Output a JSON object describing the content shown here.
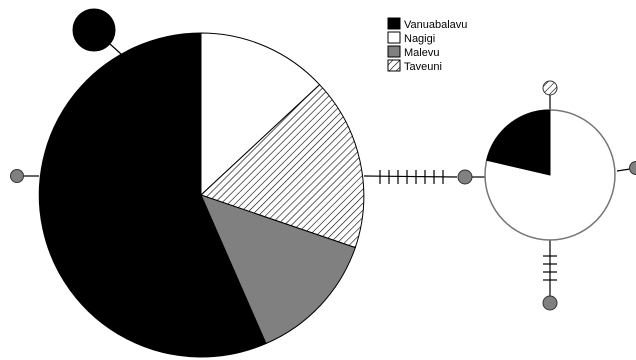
{
  "legend": {
    "items": [
      {
        "label": "Vanuabalavu",
        "fill": "black"
      },
      {
        "label": "Nagigi",
        "fill": "white"
      },
      {
        "label": "Malevu",
        "fill": "gray"
      },
      {
        "label": "Taveuni",
        "fill": "hatch"
      }
    ]
  },
  "colors": {
    "vanuabalavu": "#000000",
    "nagigi": "#ffffff",
    "malevu": "#808080",
    "taveuni_hatch": "#000000",
    "outline": "#000000",
    "small_ring": "#555555",
    "line": "#000000"
  },
  "haplotypes": {
    "large": {
      "composition": {
        "Vanuabalavu": 0.56,
        "Nagigi": 0.14,
        "Malevu": 0.14,
        "Taveuni": 0.16
      }
    },
    "medium": {
      "composition": {
        "Vanuabalavu": 0.22,
        "Nagigi": 0.78
      }
    },
    "singletons": [
      {
        "id": "s-top-left",
        "group": "Vanuabalavu",
        "mutations": 0
      },
      {
        "id": "s-left",
        "group": "Malevu",
        "mutations": 0
      },
      {
        "id": "s-intermediate",
        "group": "Malevu",
        "mutations": 8
      },
      {
        "id": "s-top-right",
        "group": "Taveuni",
        "mutations": 0
      },
      {
        "id": "s-right",
        "group": "Malevu",
        "mutations": 0
      },
      {
        "id": "s-bottom",
        "group": "Malevu",
        "mutations": 4
      }
    ]
  }
}
